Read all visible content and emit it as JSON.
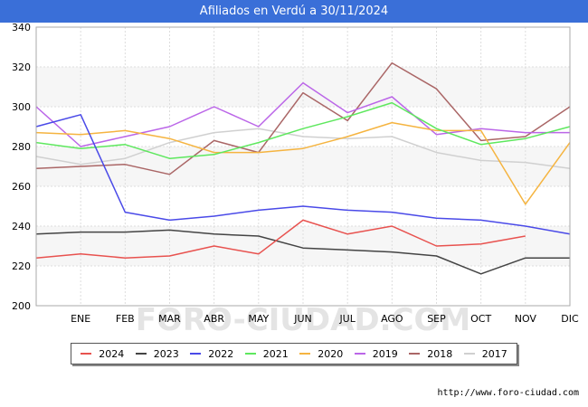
{
  "header": {
    "title": "Afiliados en Verdú a 30/11/2024"
  },
  "footer": {
    "url": "http://www.foro-ciudad.com"
  },
  "watermark_text": "FORO-CIUDAD.COM",
  "chart_data": {
    "type": "line",
    "categories": [
      "",
      "ENE",
      "FEB",
      "MAR",
      "ABR",
      "MAY",
      "JUN",
      "JUL",
      "AGO",
      "SEP",
      "OCT",
      "NOV",
      "DIC"
    ],
    "ylim": [
      200,
      340
    ],
    "yticks": [
      200,
      220,
      240,
      260,
      280,
      300,
      320,
      340
    ],
    "grid": true,
    "legend_position": "bottom",
    "series": [
      {
        "name": "2024",
        "color": "#e8524f",
        "values": [
          224,
          226,
          224,
          225,
          230,
          226,
          243,
          236,
          240,
          230,
          231,
          235,
          null
        ]
      },
      {
        "name": "2023",
        "color": "#444444",
        "values": [
          236,
          237,
          237,
          238,
          236,
          235,
          229,
          228,
          227,
          225,
          216,
          224,
          224
        ]
      },
      {
        "name": "2022",
        "color": "#4a4ae8",
        "values": [
          290,
          296,
          247,
          243,
          245,
          248,
          250,
          248,
          247,
          244,
          243,
          240,
          236
        ]
      },
      {
        "name": "2021",
        "color": "#5ee85e",
        "values": [
          282,
          279,
          281,
          274,
          276,
          282,
          289,
          295,
          302,
          289,
          281,
          284,
          290
        ]
      },
      {
        "name": "2020",
        "color": "#f5b440",
        "values": [
          287,
          286,
          288,
          284,
          277,
          277,
          279,
          285,
          292,
          288,
          288,
          251,
          282
        ]
      },
      {
        "name": "2019",
        "color": "#bb66e8",
        "values": [
          300,
          280,
          285,
          290,
          300,
          290,
          312,
          297,
          305,
          286,
          289,
          287,
          287
        ]
      },
      {
        "name": "2018",
        "color": "#aa6666",
        "values": [
          269,
          270,
          271,
          266,
          283,
          277,
          307,
          293,
          322,
          309,
          283,
          285,
          300
        ]
      },
      {
        "name": "2017",
        "color": "#d0d0d0",
        "values": [
          275,
          271,
          274,
          282,
          287,
          289,
          285,
          284,
          285,
          277,
          273,
          272,
          269
        ]
      }
    ]
  }
}
